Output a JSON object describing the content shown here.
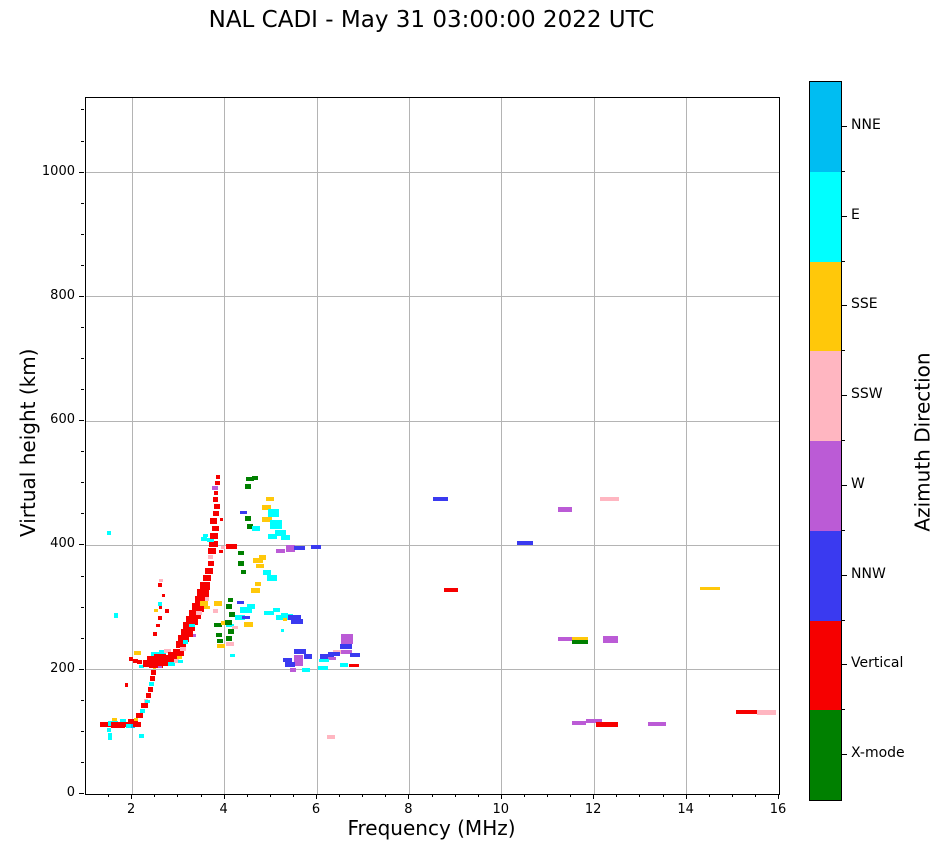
{
  "title": "NAL CADI - May 31 03:00:00 2022 UTC",
  "chart_data": {
    "type": "scatter",
    "title": "NAL CADI - May 31 03:00:00 2022 UTC",
    "xlabel": "Frequency (MHz)",
    "ylabel": "Virtual height (km)",
    "xlim": [
      1,
      16
    ],
    "ylim": [
      0,
      1120
    ],
    "x_ticks": [
      2,
      4,
      6,
      8,
      10,
      12,
      14,
      16
    ],
    "y_ticks": [
      0,
      200,
      400,
      600,
      800,
      1000
    ],
    "x_minor_step": 0.5,
    "y_minor_step": 50,
    "grid": true,
    "grid_color": "#b4b4b4",
    "legend_position": "right-colorbar",
    "colorbar": {
      "label": "Azimuth Direction",
      "categories": [
        {
          "key": "NNE",
          "label": "NNE",
          "color": "#00bdf2"
        },
        {
          "key": "E",
          "label": "E",
          "color": "#00ffff"
        },
        {
          "key": "SSE",
          "label": "SSE",
          "color": "#ffc80a"
        },
        {
          "key": "SSW",
          "label": "SSW",
          "color": "#ffb6c1"
        },
        {
          "key": "W",
          "label": "W",
          "color": "#bb5bd6"
        },
        {
          "key": "NNW",
          "label": "NNW",
          "color": "#3a3af0"
        },
        {
          "key": "Vertical",
          "label": "Vertical",
          "color": "#f60000"
        },
        {
          "key": "X",
          "label": "X-mode",
          "color": "#008000"
        }
      ]
    },
    "points_format": [
      "freq_MHz",
      "height_km",
      "direction",
      "width_MHz",
      "thickness_km"
    ],
    "points": [
      [
        1.45,
        112,
        "Vertical",
        0.3,
        9
      ],
      [
        1.5,
        103,
        "E",
        0.1,
        6
      ],
      [
        1.52,
        93,
        "E",
        0.1,
        11
      ],
      [
        1.58,
        113,
        "E",
        0.22,
        8
      ],
      [
        1.62,
        120,
        "SSE",
        0.1,
        5
      ],
      [
        1.7,
        111,
        "Vertical",
        0.3,
        9
      ],
      [
        1.8,
        117,
        "E",
        0.14,
        6
      ],
      [
        1.88,
        112,
        "Vertical",
        0.28,
        9
      ],
      [
        1.95,
        109,
        "E",
        0.18,
        7
      ],
      [
        2.02,
        117,
        "Vertical",
        0.22,
        8
      ],
      [
        2.02,
        109,
        "NNE",
        0.1,
        6
      ],
      [
        2.1,
        112,
        "Vertical",
        0.18,
        7
      ],
      [
        2.08,
        120,
        "SSE",
        0.08,
        5
      ],
      [
        2.2,
        93,
        "E",
        0.1,
        6
      ],
      [
        1.88,
        175,
        "Vertical",
        0.08,
        6
      ],
      [
        1.65,
        287,
        "E",
        0.1,
        7
      ],
      [
        1.5,
        420,
        "E",
        0.1,
        7
      ],
      [
        2.16,
        126,
        "Vertical",
        0.16,
        8
      ],
      [
        2.22,
        134,
        "E",
        0.12,
        7
      ],
      [
        2.26,
        142,
        "Vertical",
        0.16,
        8
      ],
      [
        2.3,
        150,
        "SSW",
        0.1,
        6
      ],
      [
        2.33,
        149,
        "E",
        0.1,
        6
      ],
      [
        2.35,
        158,
        "Vertical",
        0.12,
        8
      ],
      [
        2.4,
        168,
        "Vertical",
        0.1,
        7
      ],
      [
        2.42,
        177,
        "E",
        0.1,
        6
      ],
      [
        2.44,
        186,
        "Vertical",
        0.12,
        9
      ],
      [
        2.46,
        196,
        "Vertical",
        0.1,
        8
      ],
      [
        2.48,
        204,
        "SSE",
        0.08,
        5
      ],
      [
        1.98,
        217,
        "Vertical",
        0.08,
        6
      ],
      [
        2.07,
        214,
        "Vertical",
        0.1,
        7
      ],
      [
        2.12,
        227,
        "SSE",
        0.16,
        6
      ],
      [
        2.16,
        212,
        "Vertical",
        0.1,
        6
      ],
      [
        2.2,
        205,
        "E",
        0.12,
        6
      ],
      [
        2.35,
        210,
        "Vertical",
        0.22,
        10
      ],
      [
        2.44,
        216,
        "Vertical",
        0.26,
        12
      ],
      [
        2.52,
        207,
        "Vertical",
        0.3,
        10
      ],
      [
        2.5,
        225,
        "E",
        0.18,
        7
      ],
      [
        2.6,
        220,
        "Vertical",
        0.26,
        11
      ],
      [
        2.6,
        206,
        "W",
        0.1,
        6
      ],
      [
        2.66,
        228,
        "E",
        0.14,
        6
      ],
      [
        2.7,
        212,
        "Vertical",
        0.34,
        12
      ],
      [
        2.76,
        230,
        "SSW",
        0.14,
        6
      ],
      [
        2.8,
        218,
        "Vertical",
        0.26,
        10
      ],
      [
        2.85,
        209,
        "E",
        0.16,
        6
      ],
      [
        2.9,
        223,
        "Vertical",
        0.24,
        10
      ],
      [
        2.96,
        214,
        "SSW",
        0.1,
        6
      ],
      [
        3.0,
        228,
        "Vertical",
        0.24,
        11
      ],
      [
        2.5,
        258,
        "Vertical",
        0.08,
        6
      ],
      [
        2.56,
        271,
        "Vertical",
        0.08,
        6
      ],
      [
        2.6,
        283,
        "Vertical",
        0.09,
        6
      ],
      [
        2.52,
        295,
        "SSE",
        0.08,
        5
      ],
      [
        2.6,
        306,
        "E",
        0.1,
        6
      ],
      [
        2.61,
        300,
        "Vertical",
        0.08,
        5
      ],
      [
        2.75,
        295,
        "Vertical",
        0.09,
        6
      ],
      [
        2.68,
        320,
        "Vertical",
        0.07,
        5
      ],
      [
        2.6,
        336,
        "Vertical",
        0.09,
        6
      ],
      [
        2.63,
        343,
        "SSW",
        0.08,
        5
      ],
      [
        3.06,
        241,
        "Vertical",
        0.22,
        12
      ],
      [
        3.12,
        250,
        "Vertical",
        0.24,
        12
      ],
      [
        3.18,
        259,
        "Vertical",
        0.26,
        13
      ],
      [
        3.15,
        245,
        "E",
        0.12,
        6
      ],
      [
        3.1,
        233,
        "SSW",
        0.14,
        6
      ],
      [
        3.02,
        220,
        "SSE",
        0.1,
        5
      ],
      [
        3.05,
        213,
        "E",
        0.12,
        6
      ],
      [
        3.24,
        269,
        "Vertical",
        0.26,
        14
      ],
      [
        3.3,
        279,
        "Vertical",
        0.26,
        14
      ],
      [
        3.3,
        271,
        "E",
        0.12,
        6
      ],
      [
        3.35,
        255,
        "W",
        0.08,
        6
      ],
      [
        3.36,
        289,
        "Vertical",
        0.26,
        14
      ],
      [
        3.42,
        300,
        "Vertical",
        0.26,
        15
      ],
      [
        3.45,
        291,
        "SSW",
        0.12,
        6
      ],
      [
        3.48,
        311,
        "Vertical",
        0.26,
        15
      ],
      [
        3.54,
        323,
        "Vertical",
        0.26,
        15
      ],
      [
        3.55,
        306,
        "SSE",
        0.16,
        8
      ],
      [
        3.58,
        335,
        "Vertical",
        0.22,
        13
      ],
      [
        3.62,
        314,
        "SSW",
        0.1,
        6
      ],
      [
        3.62,
        300,
        "SSE",
        0.12,
        6
      ],
      [
        3.62,
        347,
        "Vertical",
        0.16,
        10
      ],
      [
        3.66,
        359,
        "Vertical",
        0.16,
        10
      ],
      [
        3.7,
        371,
        "Vertical",
        0.14,
        9
      ],
      [
        3.7,
        381,
        "SSW",
        0.12,
        7
      ],
      [
        3.73,
        391,
        "Vertical",
        0.18,
        10
      ],
      [
        3.76,
        402,
        "Vertical",
        0.2,
        10
      ],
      [
        3.7,
        409,
        "E",
        0.16,
        7
      ],
      [
        3.59,
        416,
        "E",
        0.12,
        6
      ],
      [
        3.55,
        410,
        "E",
        0.14,
        6
      ],
      [
        3.77,
        415,
        "Vertical",
        0.16,
        9
      ],
      [
        3.8,
        427,
        "Vertical",
        0.14,
        9
      ],
      [
        3.76,
        439,
        "Vertical",
        0.16,
        9
      ],
      [
        3.81,
        451,
        "Vertical",
        0.13,
        8
      ],
      [
        3.84,
        463,
        "Vertical",
        0.13,
        8
      ],
      [
        3.8,
        474,
        "Vertical",
        0.11,
        7
      ],
      [
        3.81,
        484,
        "Vertical",
        0.1,
        7
      ],
      [
        3.8,
        492,
        "W",
        0.13,
        7
      ],
      [
        3.85,
        500,
        "Vertical",
        0.1,
        7
      ],
      [
        3.86,
        510,
        "Vertical",
        0.1,
        7
      ],
      [
        3.92,
        390,
        "Vertical",
        0.1,
        6
      ],
      [
        3.96,
        397,
        "SSW",
        0.09,
        5
      ],
      [
        3.93,
        441,
        "Vertical",
        0.08,
        5
      ],
      [
        3.86,
        306,
        "SSE",
        0.16,
        8
      ],
      [
        3.8,
        295,
        "SSW",
        0.12,
        6
      ],
      [
        3.9,
        246,
        "X",
        0.14,
        7
      ],
      [
        3.88,
        256,
        "X",
        0.12,
        6
      ],
      [
        3.92,
        238,
        "SSE",
        0.16,
        7
      ],
      [
        3.86,
        272,
        "X",
        0.18,
        7
      ],
      [
        4.02,
        275,
        "SSE",
        0.18,
        6
      ],
      [
        4.12,
        271,
        "E",
        0.16,
        6
      ],
      [
        4.22,
        268,
        "SSW",
        0.12,
        6
      ],
      [
        4.12,
        241,
        "SSW",
        0.18,
        6
      ],
      [
        4.17,
        223,
        "E",
        0.1,
        5
      ],
      [
        4.15,
        398,
        "Vertical",
        0.22,
        7
      ],
      [
        4.1,
        250,
        "X",
        0.14,
        8
      ],
      [
        4.13,
        262,
        "X",
        0.13,
        8
      ],
      [
        4.08,
        276,
        "X",
        0.14,
        8
      ],
      [
        4.15,
        289,
        "X",
        0.13,
        8
      ],
      [
        4.1,
        301,
        "X",
        0.13,
        8
      ],
      [
        4.13,
        312,
        "X",
        0.12,
        7
      ],
      [
        4.33,
        284,
        "E",
        0.22,
        8
      ],
      [
        4.46,
        296,
        "E",
        0.26,
        10
      ],
      [
        4.57,
        301,
        "E",
        0.18,
        8
      ],
      [
        4.47,
        284,
        "NNW",
        0.18,
        6
      ],
      [
        4.52,
        273,
        "SSE",
        0.18,
        7
      ],
      [
        4.67,
        327,
        "SSE",
        0.18,
        8
      ],
      [
        4.72,
        338,
        "SSE",
        0.14,
        7
      ],
      [
        4.35,
        308,
        "NNW",
        0.16,
        6
      ],
      [
        4.36,
        388,
        "X",
        0.13,
        7
      ],
      [
        4.36,
        371,
        "X",
        0.13,
        7
      ],
      [
        4.41,
        357,
        "X",
        0.11,
        6
      ],
      [
        4.72,
        376,
        "SSE",
        0.22,
        9
      ],
      [
        4.82,
        381,
        "SSE",
        0.16,
        8
      ],
      [
        4.77,
        367,
        "SSE",
        0.16,
        7
      ],
      [
        4.92,
        356,
        "E",
        0.18,
        8
      ],
      [
        5.02,
        348,
        "E",
        0.22,
        9
      ],
      [
        4.97,
        291,
        "E",
        0.22,
        7
      ],
      [
        5.12,
        296,
        "E",
        0.16,
        7
      ],
      [
        5.24,
        284,
        "E",
        0.26,
        7
      ],
      [
        5.38,
        286,
        "E",
        0.2,
        7
      ],
      [
        5.3,
        288,
        "E",
        0.16,
        6
      ],
      [
        5.31,
        281,
        "SSE",
        0.1,
        6
      ],
      [
        5.52,
        284,
        "NNW",
        0.28,
        8
      ],
      [
        5.57,
        277,
        "NNW",
        0.26,
        8
      ],
      [
        5.25,
        263,
        "E",
        0.08,
        5
      ],
      [
        4.55,
        507,
        "X",
        0.16,
        7
      ],
      [
        4.66,
        509,
        "X",
        0.13,
        6
      ],
      [
        4.51,
        495,
        "X",
        0.13,
        7
      ],
      [
        4.99,
        475,
        "SSE",
        0.18,
        6
      ],
      [
        4.91,
        461,
        "SSE",
        0.18,
        8
      ],
      [
        4.92,
        441,
        "SSE",
        0.22,
        8
      ],
      [
        5.06,
        452,
        "E",
        0.22,
        12
      ],
      [
        5.11,
        434,
        "E",
        0.26,
        14
      ],
      [
        5.21,
        420,
        "E",
        0.22,
        10
      ],
      [
        5.04,
        414,
        "E",
        0.18,
        8
      ],
      [
        5.32,
        412,
        "E",
        0.18,
        8
      ],
      [
        4.41,
        453,
        "NNW",
        0.16,
        6
      ],
      [
        4.51,
        443,
        "X",
        0.13,
        8
      ],
      [
        4.56,
        430,
        "X",
        0.13,
        8
      ],
      [
        4.68,
        427,
        "E",
        0.16,
        8
      ],
      [
        5.21,
        391,
        "W",
        0.18,
        7
      ],
      [
        5.42,
        395,
        "W",
        0.2,
        10
      ],
      [
        5.62,
        396,
        "NNW",
        0.22,
        7
      ],
      [
        5.97,
        397,
        "NNW",
        0.22,
        7
      ],
      [
        5.6,
        215,
        "W",
        0.2,
        18
      ],
      [
        5.42,
        208,
        "NNW",
        0.22,
        8
      ],
      [
        5.48,
        200,
        "W",
        0.13,
        6
      ],
      [
        5.76,
        200,
        "E",
        0.18,
        6
      ],
      [
        5.8,
        221,
        "NNW",
        0.18,
        8
      ],
      [
        5.63,
        230,
        "NNW",
        0.26,
        8
      ],
      [
        5.36,
        216,
        "NNW",
        0.18,
        7
      ],
      [
        6.65,
        250,
        "W",
        0.24,
        16
      ],
      [
        6.63,
        238,
        "NNW",
        0.26,
        8
      ],
      [
        6.62,
        229,
        "W",
        0.28,
        7
      ],
      [
        6.43,
        228,
        "SSW",
        0.16,
        7
      ],
      [
        6.22,
        222,
        "NNW",
        0.3,
        8
      ],
      [
        6.32,
        218,
        "W",
        0.18,
        6
      ],
      [
        6.37,
        225,
        "NNW",
        0.26,
        7
      ],
      [
        6.82,
        224,
        "NNW",
        0.22,
        7
      ],
      [
        6.15,
        215,
        "E",
        0.22,
        6
      ],
      [
        6.58,
        208,
        "E",
        0.18,
        6
      ],
      [
        6.8,
        207,
        "Vertical",
        0.22,
        6
      ],
      [
        6.13,
        203,
        "E",
        0.2,
        6
      ],
      [
        6.3,
        92,
        "SSW",
        0.16,
        6
      ],
      [
        8.67,
        475,
        "NNW",
        0.32,
        7
      ],
      [
        8.9,
        328,
        "Vertical",
        0.3,
        7
      ],
      [
        10.5,
        404,
        "NNW",
        0.36,
        7
      ],
      [
        11.37,
        458,
        "W",
        0.32,
        7
      ],
      [
        12.33,
        475,
        "SSW",
        0.4,
        6
      ],
      [
        11.37,
        249,
        "W",
        0.3,
        6
      ],
      [
        11.7,
        250,
        "SSE",
        0.34,
        6
      ],
      [
        11.7,
        245,
        "X",
        0.34,
        6
      ],
      [
        12.35,
        249,
        "W",
        0.34,
        11
      ],
      [
        14.51,
        330,
        "SSE",
        0.44,
        5
      ],
      [
        11.67,
        114,
        "W",
        0.3,
        7
      ],
      [
        12.0,
        117,
        "W",
        0.34,
        7
      ],
      [
        12.27,
        112,
        "Vertical",
        0.48,
        7
      ],
      [
        13.36,
        113,
        "W",
        0.38,
        6
      ],
      [
        15.3,
        132,
        "Vertical",
        0.44,
        7
      ],
      [
        15.73,
        131,
        "SSW",
        0.42,
        7
      ]
    ]
  }
}
